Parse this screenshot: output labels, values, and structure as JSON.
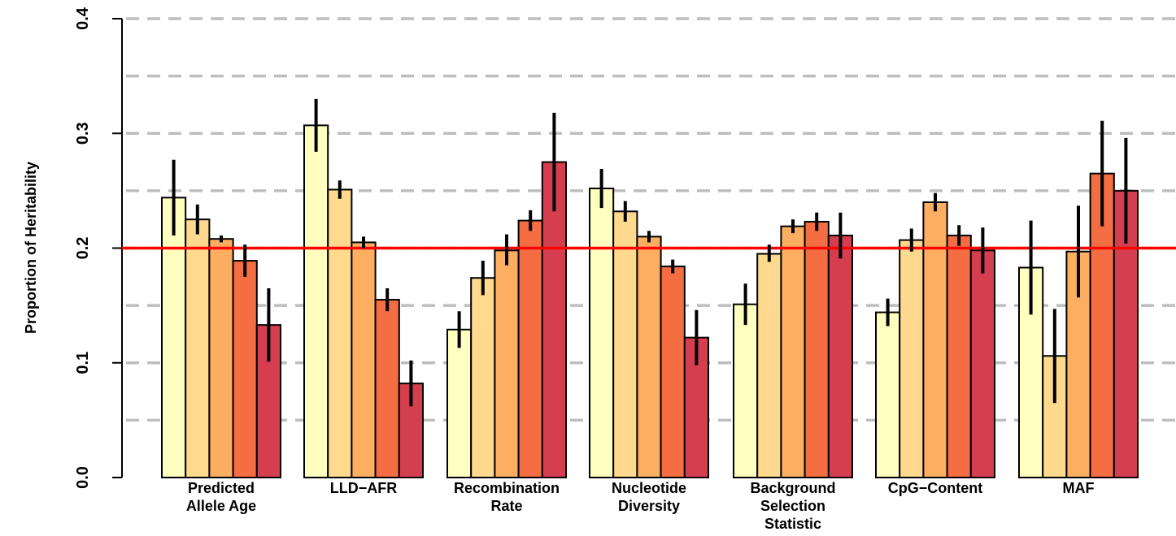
{
  "chart_data": {
    "type": "bar",
    "ylabel": "Proportion of Heritability",
    "ylim": [
      0,
      0.4
    ],
    "y_ticks": [
      "0.0",
      "0.1",
      "0.2",
      "0.3",
      "0.4"
    ],
    "gridlines": [
      0.05,
      0.1,
      0.15,
      0.2,
      0.25,
      0.3,
      0.35,
      0.4
    ],
    "reference_line": {
      "value": 0.2,
      "color": "#ff0000"
    },
    "categories": [
      [
        "Predicted",
        "Allele Age"
      ],
      [
        "LLD−AFR"
      ],
      [
        "Recombination",
        "Rate"
      ],
      [
        "Nucleotide",
        "Diversity"
      ],
      [
        "Background",
        "Selection",
        "Statistic"
      ],
      [
        "CpG−Content"
      ],
      [
        "MAF"
      ]
    ],
    "bar_colors": [
      "#ffffbf",
      "#fed98e",
      "#fdae61",
      "#f46d43",
      "#d53e4f"
    ],
    "groups": [
      {
        "values": [
          0.244,
          0.225,
          0.208,
          0.189,
          0.133
        ],
        "errors": [
          [
            0.211,
            0.277
          ],
          [
            0.212,
            0.238
          ],
          [
            0.205,
            0.211
          ],
          [
            0.175,
            0.203
          ],
          [
            0.101,
            0.165
          ]
        ]
      },
      {
        "values": [
          0.307,
          0.251,
          0.205,
          0.155,
          0.082
        ],
        "errors": [
          [
            0.284,
            0.33
          ],
          [
            0.243,
            0.259
          ],
          [
            0.2,
            0.21
          ],
          [
            0.145,
            0.165
          ],
          [
            0.062,
            0.102
          ]
        ]
      },
      {
        "values": [
          0.129,
          0.174,
          0.198,
          0.224,
          0.275
        ],
        "errors": [
          [
            0.113,
            0.145
          ],
          [
            0.159,
            0.189
          ],
          [
            0.185,
            0.212
          ],
          [
            0.215,
            0.233
          ],
          [
            0.232,
            0.318
          ]
        ]
      },
      {
        "values": [
          0.252,
          0.232,
          0.21,
          0.184,
          0.122
        ],
        "errors": [
          [
            0.235,
            0.269
          ],
          [
            0.223,
            0.241
          ],
          [
            0.205,
            0.215
          ],
          [
            0.178,
            0.19
          ],
          [
            0.098,
            0.146
          ]
        ]
      },
      {
        "values": [
          0.151,
          0.195,
          0.219,
          0.223,
          0.211
        ],
        "errors": [
          [
            0.133,
            0.169
          ],
          [
            0.188,
            0.203
          ],
          [
            0.213,
            0.225
          ],
          [
            0.215,
            0.231
          ],
          [
            0.191,
            0.231
          ]
        ]
      },
      {
        "values": [
          0.144,
          0.207,
          0.24,
          0.211,
          0.198
        ],
        "errors": [
          [
            0.132,
            0.156
          ],
          [
            0.197,
            0.217
          ],
          [
            0.232,
            0.248
          ],
          [
            0.202,
            0.22
          ],
          [
            0.178,
            0.218
          ]
        ]
      },
      {
        "values": [
          0.183,
          0.106,
          0.197,
          0.265,
          0.25
        ],
        "errors": [
          [
            0.142,
            0.224
          ],
          [
            0.065,
            0.147
          ],
          [
            0.157,
            0.237
          ],
          [
            0.219,
            0.311
          ],
          [
            0.204,
            0.296
          ]
        ]
      }
    ]
  }
}
